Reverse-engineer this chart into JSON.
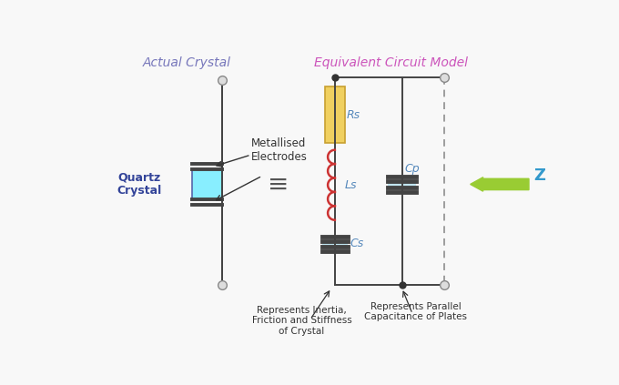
{
  "title_left": "Actual Crystal",
  "title_right": "Equivalent Circuit Model",
  "title_left_color": "#7777bb",
  "title_right_color": "#cc55bb",
  "bg_color": "#f8f8f8",
  "quartz_label": "Quartz\nCrystal",
  "quartz_color": "#88eeff",
  "metallised_label": "Metallised\nElectrodes",
  "Rs_label": "Rs",
  "Ls_label": "Ls",
  "Cs_label": "Cs",
  "Cp_label": "Cp",
  "Z_label": "Z",
  "Z_color": "#99cc33",
  "Rs_fill": "#f0d060",
  "Rs_edge": "#c8a030",
  "Ls_color": "#cc3333",
  "cap_fill": "#aaddee",
  "cap_edge": "#333333",
  "wire_color": "#444444",
  "component_label_color": "#5588bb",
  "node_color": "#aaaaaa",
  "dot_color": "#333333",
  "annotation_color": "#333333",
  "annotation1": "Represents Inertia,\nFriction and Stiffness\nof Crystal",
  "annotation2": "Represents Parallel\nCapacitance of Plates"
}
